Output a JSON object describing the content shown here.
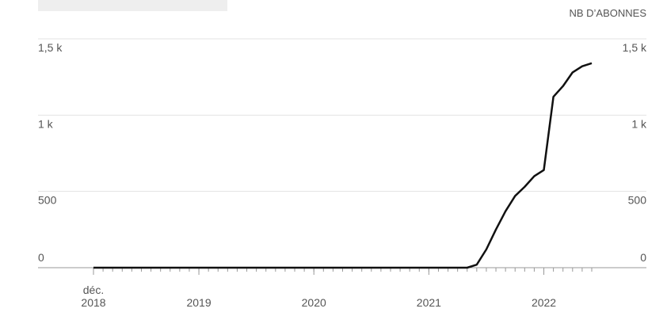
{
  "chart_data": {
    "type": "line",
    "y2label": "NB D’ABONNES",
    "x": [
      "2018-12",
      "2019-01",
      "2019-02",
      "2019-03",
      "2019-04",
      "2019-05",
      "2019-06",
      "2019-07",
      "2019-08",
      "2019-09",
      "2019-10",
      "2019-11",
      "2019-12",
      "2020-01",
      "2020-02",
      "2020-03",
      "2020-04",
      "2020-05",
      "2020-06",
      "2020-07",
      "2020-08",
      "2020-09",
      "2020-10",
      "2020-11",
      "2020-12",
      "2021-01",
      "2021-02",
      "2021-03",
      "2021-04",
      "2021-05",
      "2021-06",
      "2021-07",
      "2021-08",
      "2021-09",
      "2021-10",
      "2021-11",
      "2021-12",
      "2022-01",
      "2022-02",
      "2022-03",
      "2022-04",
      "2022-05",
      "2022-06",
      "2022-07",
      "2022-08",
      "2022-09",
      "2022-10",
      "2022-11",
      "2022-12",
      "2023-01",
      "2023-02",
      "2023-03",
      "2023-04"
    ],
    "series": [
      {
        "name": "abonnés",
        "color": "#111111",
        "values": [
          0,
          0,
          0,
          0,
          0,
          0,
          0,
          0,
          0,
          0,
          0,
          0,
          0,
          0,
          0,
          0,
          0,
          0,
          0,
          0,
          0,
          0,
          0,
          0,
          0,
          0,
          0,
          0,
          0,
          0,
          0,
          0,
          0,
          0,
          0,
          0,
          0,
          0,
          0,
          0,
          20,
          120,
          250,
          370,
          470,
          530,
          600,
          640,
          1120,
          1190,
          1280,
          1320,
          1340
        ]
      }
    ],
    "xticks": [
      {
        "value": "2018-12",
        "label": "déc. 2018"
      },
      {
        "value": "2019-11",
        "label": "2019"
      },
      {
        "value": "2020-11",
        "label": "2020"
      },
      {
        "value": "2021-11",
        "label": "2021"
      },
      {
        "value": "2022-11",
        "label": "2022"
      }
    ],
    "ylim": [
      0,
      1500
    ],
    "yticks": [
      0,
      500,
      {
        "value": 1000,
        "label": "1 k"
      },
      {
        "value": 1500,
        "label": "1,5 k"
      }
    ],
    "y2lim": [
      0,
      1500
    ],
    "y2ticks": [
      0,
      500,
      {
        "value": 1000,
        "label": "1 k"
      },
      {
        "value": 1500,
        "label": "1,5 k"
      }
    ],
    "grid": true
  }
}
